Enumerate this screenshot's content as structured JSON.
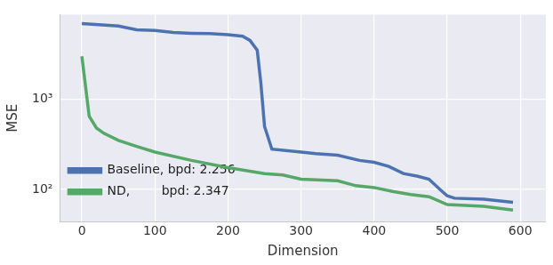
{
  "chart_data": {
    "type": "line",
    "x_label": "Dimension",
    "y_label": "MSE",
    "log": "y",
    "grid": true,
    "legend": "upper right",
    "xlim": [
      -30,
      635
    ],
    "xticks": [
      0,
      100,
      200,
      300,
      400,
      500,
      600
    ],
    "ylim": [
      44,
      8700
    ],
    "yticks": [
      {
        "value": 100,
        "label": "10²"
      },
      {
        "value": 1000,
        "label": "10³"
      }
    ],
    "series": [
      {
        "name": "Baseline, bpd: 2.256",
        "color": "#4c72b0",
        "x": [
          0,
          50,
          75,
          100,
          125,
          150,
          175,
          200,
          220,
          230,
          240,
          245,
          250,
          260,
          300,
          320,
          350,
          380,
          400,
          420,
          440,
          460,
          475,
          490,
          500,
          510,
          550,
          590
        ],
        "values": [
          6900,
          6500,
          5900,
          5800,
          5500,
          5400,
          5350,
          5200,
          5000,
          4500,
          3500,
          1500,
          500,
          280,
          260,
          250,
          240,
          210,
          200,
          180,
          150,
          140,
          130,
          100,
          85,
          80,
          78,
          72
        ]
      },
      {
        "name": "ND,        bpd: 2.347",
        "color": "#55a868",
        "x": [
          0,
          10,
          20,
          30,
          50,
          75,
          100,
          150,
          200,
          250,
          275,
          300,
          350,
          375,
          400,
          425,
          450,
          475,
          500,
          550,
          590
        ],
        "values": [
          3000,
          650,
          480,
          420,
          350,
          300,
          260,
          210,
          175,
          150,
          145,
          130,
          125,
          110,
          105,
          95,
          88,
          83,
          68,
          65,
          59
        ]
      }
    ]
  }
}
